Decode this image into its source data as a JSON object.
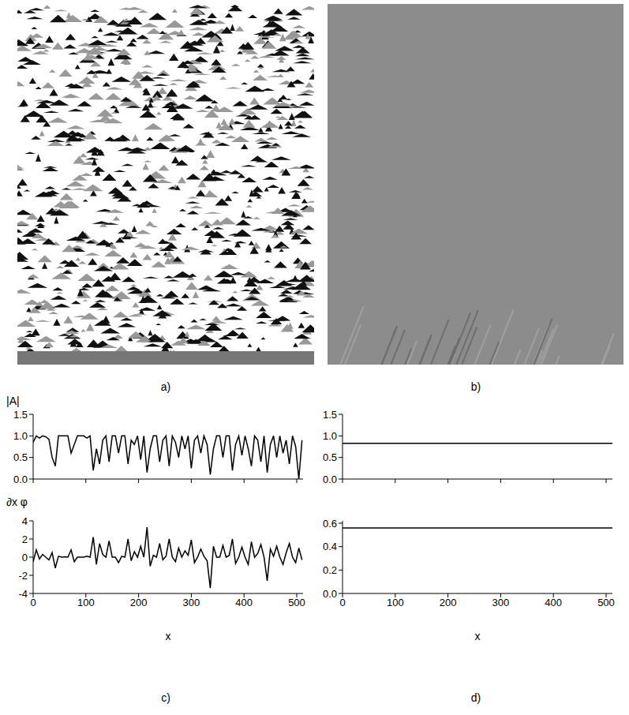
{
  "panel_labels": [
    "a)",
    "b)",
    "c)",
    "d)"
  ],
  "chart_data": [
    {
      "type": "line",
      "panel": "c)",
      "ylabel": "|A|",
      "color": "#000000",
      "tick_labels": "y",
      "x": [
        0,
        6,
        12,
        18,
        24,
        30,
        36,
        42,
        48,
        54,
        60,
        66,
        72,
        78,
        84,
        90,
        96,
        102,
        108,
        114,
        120,
        126,
        132,
        138,
        144,
        150,
        156,
        162,
        168,
        174,
        180,
        186,
        192,
        198,
        204,
        210,
        216,
        222,
        228,
        234,
        240,
        246,
        252,
        258,
        264,
        270,
        276,
        282,
        288,
        294,
        300,
        306,
        312,
        318,
        324,
        330,
        336,
        342,
        348,
        354,
        360,
        366,
        372,
        378,
        384,
        390,
        396,
        402,
        408,
        414,
        420,
        426,
        432,
        438,
        444,
        450,
        456,
        462,
        468,
        474,
        480,
        486,
        492,
        498,
        504,
        510
      ],
      "values": [
        0.85,
        1.0,
        0.95,
        1.0,
        0.98,
        0.92,
        0.5,
        0.3,
        1.0,
        1.0,
        1.0,
        1.0,
        0.6,
        0.8,
        1.0,
        1.0,
        1.0,
        0.95,
        1.0,
        0.2,
        0.7,
        0.35,
        0.9,
        1.0,
        0.4,
        1.0,
        1.0,
        0.6,
        1.0,
        1.0,
        0.35,
        0.9,
        0.8,
        1.0,
        0.45,
        1.0,
        0.15,
        0.7,
        1.0,
        1.0,
        0.4,
        0.9,
        1.0,
        0.3,
        1.0,
        0.85,
        0.5,
        1.0,
        0.7,
        1.0,
        0.25,
        0.9,
        1.0,
        0.6,
        1.0,
        0.8,
        0.1,
        0.7,
        1.0,
        1.0,
        0.5,
        1.0,
        1.0,
        0.2,
        0.8,
        1.0,
        0.55,
        1.0,
        0.7,
        0.3,
        1.0,
        0.9,
        0.4,
        1.0,
        0.15,
        0.8,
        1.0,
        0.5,
        1.0,
        0.6,
        0.9,
        0.35,
        1.0,
        0.75,
        0.0,
        0.9
      ],
      "xlim": [
        0,
        512
      ],
      "xticks": [
        0,
        100,
        200,
        300,
        400,
        500
      ],
      "ylim": [
        0,
        1.5
      ],
      "yticks": [
        {
          "value": 0,
          "label": "0.0"
        },
        {
          "value": 0.5,
          "label": "0.5"
        },
        {
          "value": 1,
          "label": "1.0"
        },
        {
          "value": 1.5,
          "label": "1.5"
        }
      ]
    },
    {
      "type": "line",
      "panel": "c)",
      "ylabel": "∂x φ",
      "xlabel": "x",
      "color": "#000000",
      "x": [
        0,
        6,
        12,
        18,
        24,
        30,
        36,
        42,
        48,
        54,
        60,
        66,
        72,
        78,
        84,
        90,
        96,
        102,
        108,
        114,
        120,
        126,
        132,
        138,
        144,
        150,
        156,
        162,
        168,
        174,
        180,
        186,
        192,
        198,
        204,
        210,
        216,
        222,
        228,
        234,
        240,
        246,
        252,
        258,
        264,
        270,
        276,
        282,
        288,
        294,
        300,
        306,
        312,
        318,
        324,
        330,
        336,
        342,
        348,
        354,
        360,
        366,
        372,
        378,
        384,
        390,
        396,
        402,
        408,
        414,
        420,
        426,
        432,
        438,
        444,
        450,
        456,
        462,
        468,
        474,
        480,
        486,
        492,
        498,
        504,
        510
      ],
      "values": [
        -0.5,
        0.8,
        -0.2,
        0.3,
        0,
        -0.3,
        0.5,
        -1.2,
        0.1,
        0,
        0.05,
        0,
        0.8,
        -0.5,
        0,
        0,
        0,
        0.1,
        0,
        2.2,
        -0.8,
        1.5,
        0.3,
        0,
        1.8,
        0,
        0,
        -0.6,
        0.1,
        0,
        2.0,
        -0.4,
        0.6,
        0,
        1.2,
        0,
        3.3,
        -1.0,
        0.2,
        0,
        1.5,
        -0.3,
        0.1,
        2.0,
        0,
        -0.5,
        1.0,
        0,
        0.7,
        0.2,
        1.9,
        -0.6,
        0,
        0.9,
        0.1,
        -0.4,
        -3.4,
        1.2,
        0,
        0,
        1.3,
        0,
        0.2,
        2.0,
        -0.7,
        0,
        1.1,
        0,
        -0.8,
        1.7,
        0,
        0.4,
        1.4,
        0,
        -2.6,
        0.9,
        0.1,
        1.2,
        0,
        -0.8,
        0.5,
        1.5,
        0,
        -0.6,
        1.0,
        -0.3
      ],
      "xlim": [
        0,
        512
      ],
      "xticks": [
        0,
        100,
        200,
        300,
        400,
        500
      ],
      "ylim": [
        -4,
        4
      ],
      "yticks": [
        -4,
        -2,
        0,
        2,
        4
      ]
    },
    {
      "type": "line",
      "panel": "d)",
      "color": "#000000",
      "tick_labels": "y",
      "x": [
        0,
        512
      ],
      "values": [
        0.83,
        0.83
      ],
      "xlim": [
        0,
        512
      ],
      "xticks": [
        0,
        100,
        200,
        300,
        400,
        500
      ],
      "ylim": [
        0,
        1.5
      ],
      "yticks": [
        {
          "value": 0,
          "label": "0.0"
        },
        {
          "value": 0.5,
          "label": "0.5"
        },
        {
          "value": 1,
          "label": "1.0"
        },
        {
          "value": 1.5,
          "label": "1.5"
        }
      ]
    },
    {
      "type": "line",
      "panel": "d)",
      "xlabel": "x",
      "color": "#000000",
      "x": [
        0,
        512
      ],
      "values": [
        0.56,
        0.56
      ],
      "xlim": [
        0,
        512
      ],
      "xticks": [
        0,
        100,
        200,
        300,
        400,
        500
      ],
      "ylim": [
        0,
        0.62
      ],
      "yticks": [
        {
          "value": 0,
          "label": "0.0"
        },
        {
          "value": 0.2,
          "label": "0.2"
        },
        {
          "value": 0.4,
          "label": "0.4"
        },
        {
          "value": 0.6,
          "label": "0.6"
        }
      ]
    }
  ]
}
